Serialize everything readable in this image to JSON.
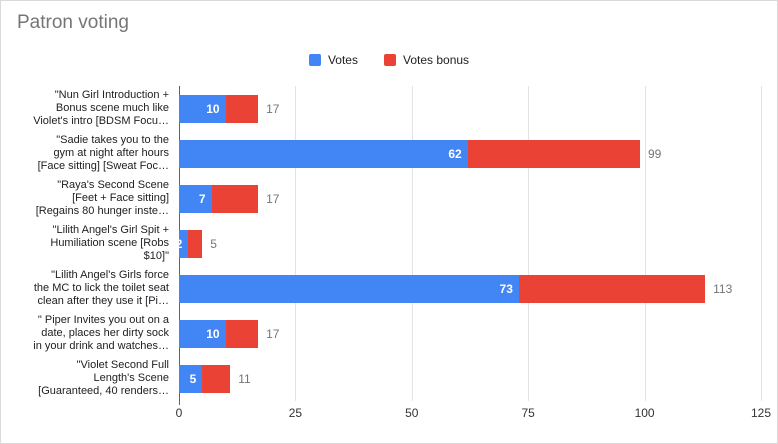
{
  "title": "Patron voting",
  "legend": {
    "items": [
      {
        "label": "Votes",
        "color": "#4285f4"
      },
      {
        "label": "Votes bonus",
        "color": "#ea4335"
      }
    ]
  },
  "chart_data": {
    "type": "bar",
    "orientation": "horizontal",
    "stacked": true,
    "title": "Patron voting",
    "xlabel": "",
    "ylabel": "",
    "xlim": [
      0,
      125
    ],
    "xticks": [
      0,
      25,
      50,
      75,
      100,
      125
    ],
    "grid": true,
    "legend_position": "top-center",
    "categories": [
      "\"Nun Girl Introduction +\nBonus scene much like\nViolet's intro [BDSM Focu…",
      "\"Sadie takes you to the\ngym at night after hours\n[Face sitting] [Sweat Foc…",
      "\"Raya's Second Scene\n[Feet + Face sitting]\n[Regains 80 hunger inste…",
      "\"Lilith Angel's Girl Spit +\nHumiliation scene [Robs\n$10]\"",
      "\"Lilith Angel's Girls force\nthe MC to lick the toilet seat\nclean after they use it [Pi…",
      "\" Piper Invites you out on a\ndate, places her dirty sock\nin your drink and watches…",
      "\"Violet Second Full\nLength's Scene\n[Guaranteed, 40 renders…"
    ],
    "series": [
      {
        "name": "Votes",
        "color": "#4285f4",
        "values": [
          10,
          62,
          7,
          2,
          73,
          10,
          5
        ]
      },
      {
        "name": "Votes bonus",
        "color": "#ea4335",
        "values": [
          7,
          37,
          10,
          3,
          40,
          7,
          6
        ]
      }
    ],
    "totals": [
      17,
      99,
      17,
      5,
      113,
      17,
      11
    ]
  }
}
